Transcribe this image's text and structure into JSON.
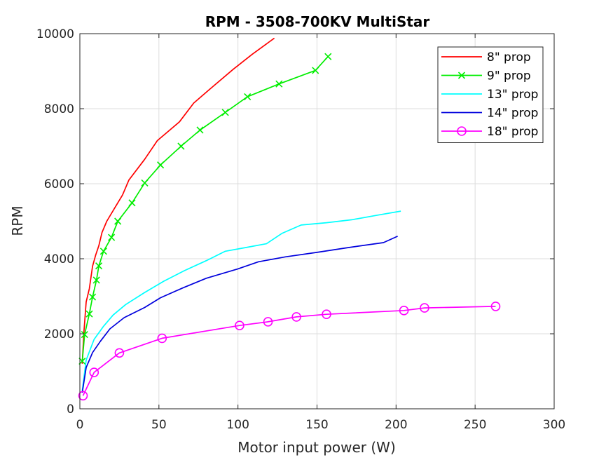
{
  "chart_data": {
    "type": "line",
    "title": "RPM - 3508-700KV MultiStar",
    "xlabel": "Motor input power (W)",
    "ylabel": "RPM",
    "xlim": [
      0,
      300
    ],
    "ylim": [
      0,
      10000
    ],
    "xticks": [
      0,
      50,
      100,
      150,
      200,
      250,
      300
    ],
    "yticks": [
      0,
      2000,
      4000,
      6000,
      8000,
      10000
    ],
    "grid": true,
    "legend_position": "top-right",
    "series": [
      {
        "name": "8\" prop",
        "color": "#ff0000",
        "marker": "none",
        "x": [
          1.5,
          2.5,
          4,
          6,
          8,
          10,
          12,
          14,
          17,
          22,
          27,
          31,
          41,
          49,
          63,
          72,
          83,
          97,
          109,
          123
        ],
        "y": [
          1200,
          2000,
          2850,
          3200,
          3800,
          4100,
          4350,
          4700,
          5000,
          5350,
          5700,
          6100,
          6650,
          7150,
          7650,
          8150,
          8550,
          9050,
          9450,
          9880
        ]
      },
      {
        "name": "9\" prop",
        "color": "#00ee00",
        "marker": "x",
        "x": [
          1.5,
          3,
          6,
          8,
          10.5,
          12,
          15,
          20,
          24,
          33,
          41,
          51,
          64,
          76,
          92,
          106,
          126,
          149,
          157
        ],
        "y": [
          1270,
          1980,
          2530,
          2980,
          3430,
          3810,
          4200,
          4570,
          5000,
          5490,
          6020,
          6500,
          7000,
          7430,
          7900,
          8320,
          8660,
          9020,
          9390
        ]
      },
      {
        "name": "13\" prop",
        "color": "#00ffff",
        "marker": "none",
        "x": [
          1.5,
          4,
          9,
          15,
          21,
          29,
          41,
          53,
          66,
          80,
          92,
          105,
          118,
          128,
          140,
          156,
          172,
          188,
          203
        ],
        "y": [
          480,
          1300,
          1850,
          2200,
          2500,
          2780,
          3100,
          3400,
          3680,
          3950,
          4200,
          4300,
          4400,
          4680,
          4900,
          4960,
          5040,
          5160,
          5270
        ]
      },
      {
        "name": "14\" prop",
        "color": "#0000dd",
        "marker": "none",
        "x": [
          1.5,
          4,
          8,
          13,
          19,
          28,
          41,
          51,
          65,
          80,
          100,
          113,
          130,
          150,
          170,
          192,
          201
        ],
        "y": [
          430,
          1100,
          1500,
          1800,
          2130,
          2430,
          2700,
          2960,
          3220,
          3480,
          3730,
          3920,
          4050,
          4170,
          4300,
          4430,
          4600
        ]
      },
      {
        "name": "18\" prop",
        "color": "#ff00ff",
        "marker": "o",
        "x": [
          2,
          9,
          25,
          52,
          101,
          119,
          137,
          156,
          205,
          218,
          263
        ],
        "y": [
          350,
          970,
          1490,
          1880,
          2220,
          2320,
          2450,
          2520,
          2620,
          2690,
          2730
        ]
      }
    ]
  }
}
